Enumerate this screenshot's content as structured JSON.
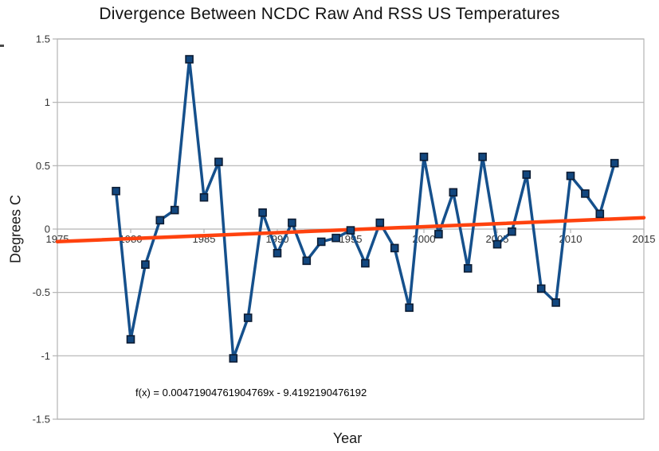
{
  "chart_data": {
    "type": "line",
    "title": "Divergence Between NCDC Raw And RSS US Temperatures",
    "xlabel": "Year",
    "ylabel": "Degrees C",
    "xlim": [
      1975,
      2015
    ],
    "ylim": [
      -1.5,
      1.5
    ],
    "grid": true,
    "legend": "none",
    "x_ticks": [
      {
        "label": "1975",
        "value": 1975
      },
      {
        "label": "1980",
        "value": 1980
      },
      {
        "label": "1985",
        "value": 1985
      },
      {
        "label": "1990",
        "value": 1990
      },
      {
        "label": "1995",
        "value": 1995
      },
      {
        "label": "2000",
        "value": 2000
      },
      {
        "label": "2005",
        "value": 2005
      },
      {
        "label": "2010",
        "value": 2010
      },
      {
        "label": "2015",
        "value": 2015
      }
    ],
    "y_ticks": [
      {
        "label": "1.5",
        "value": 1.5
      },
      {
        "label": "1",
        "value": 1
      },
      {
        "label": "0.5",
        "value": 0.5
      },
      {
        "label": "0",
        "value": 0
      },
      {
        "label": "-0.5",
        "value": -0.5
      },
      {
        "label": "-1",
        "value": -1
      },
      {
        "label": "-1.5",
        "value": -1.5
      }
    ],
    "x": [
      1979,
      1980,
      1981,
      1982,
      1983,
      1984,
      1985,
      1986,
      1987,
      1988,
      1989,
      1990,
      1991,
      1992,
      1993,
      1994,
      1995,
      1996,
      1997,
      1998,
      1999,
      2000,
      2001,
      2002,
      2003,
      2004,
      2005,
      2006,
      2007,
      2008,
      2009,
      2010,
      2011,
      2012,
      2013
    ],
    "y": [
      0.3,
      -0.87,
      -0.28,
      0.07,
      0.15,
      1.34,
      0.25,
      0.53,
      -1.02,
      -0.7,
      0.13,
      -0.19,
      0.05,
      -0.25,
      -0.1,
      -0.07,
      -0.01,
      -0.27,
      0.05,
      -0.15,
      -0.62,
      0.57,
      -0.04,
      0.29,
      -0.31,
      0.57,
      -0.12,
      -0.02,
      0.43,
      -0.47,
      -0.58,
      0.42,
      0.28,
      0.12,
      0.52
    ],
    "trendline": {
      "label": "f(x) = 0.00471904761904769x - 9.4192190476192",
      "slope": 0.00471904761904769,
      "intercept": -9.4192190476192
    },
    "colors": {
      "series": "#15508c",
      "marker_fill": "#12477f",
      "marker_border": "#0c1c33",
      "trend": "#ff420e",
      "grid": "#b3b3b3",
      "tick_text": "#333333"
    }
  }
}
